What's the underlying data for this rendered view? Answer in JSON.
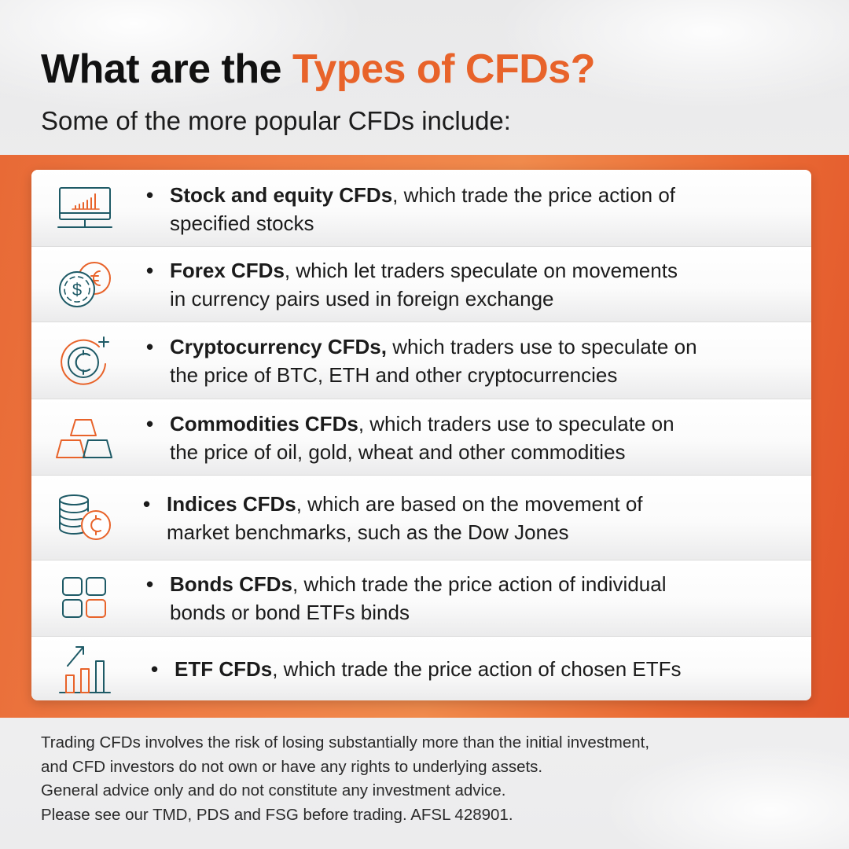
{
  "header": {
    "title_prefix": "What are the ",
    "title_accent": "Types of CFDs?",
    "subtitle": "Some of the more popular CFDs include:"
  },
  "colors": {
    "accent": "#e8632a",
    "teal": "#1e5a66",
    "band": "#ee7a42"
  },
  "items": [
    {
      "icon": "monitor-chart-icon",
      "bold": "Stock and equity CFDs",
      "rest_line1": ", which trade the price action of",
      "line2": "specified stocks"
    },
    {
      "icon": "currency-exchange-icon",
      "bold": "Forex CFDs",
      "rest_line1": ", which let traders speculate on movements",
      "line2": "in currency pairs used in foreign exchange"
    },
    {
      "icon": "crypto-coin-icon",
      "bold": "Cryptocurrency CFDs,",
      "rest_line1": " which traders use to speculate on",
      "line2": "the price of BTC, ETH and other cryptocurrencies"
    },
    {
      "icon": "gold-bars-icon",
      "bold": "Commodities CFDs",
      "rest_line1": ", which traders use to speculate on",
      "line2": "the price of oil, gold, wheat and other commodities"
    },
    {
      "icon": "coin-stack-icon",
      "bold": "Indices CFDs",
      "rest_line1": ", which are based on the movement of",
      "line2": "market benchmarks, such as the Dow Jones"
    },
    {
      "icon": "grid-blocks-icon",
      "bold": "Bonds CFDs",
      "rest_line1": ", which trade the price action of individual",
      "line2": "bonds or bond ETFs binds"
    },
    {
      "icon": "growth-bars-icon",
      "bold": "ETF CFDs",
      "rest_line1": ", which trade the price action of chosen ETFs",
      "line2": ""
    }
  ],
  "bullet": "•",
  "disclaimer": {
    "line1": "Trading CFDs involves the risk of losing substantially more than the initial investment,",
    "line2": "and CFD investors do not own or have any rights to underlying assets.",
    "line3": "General advice only and do not constitute any investment advice.",
    "line4": "Please see our TMD, PDS and FSG before trading. AFSL 428901."
  }
}
